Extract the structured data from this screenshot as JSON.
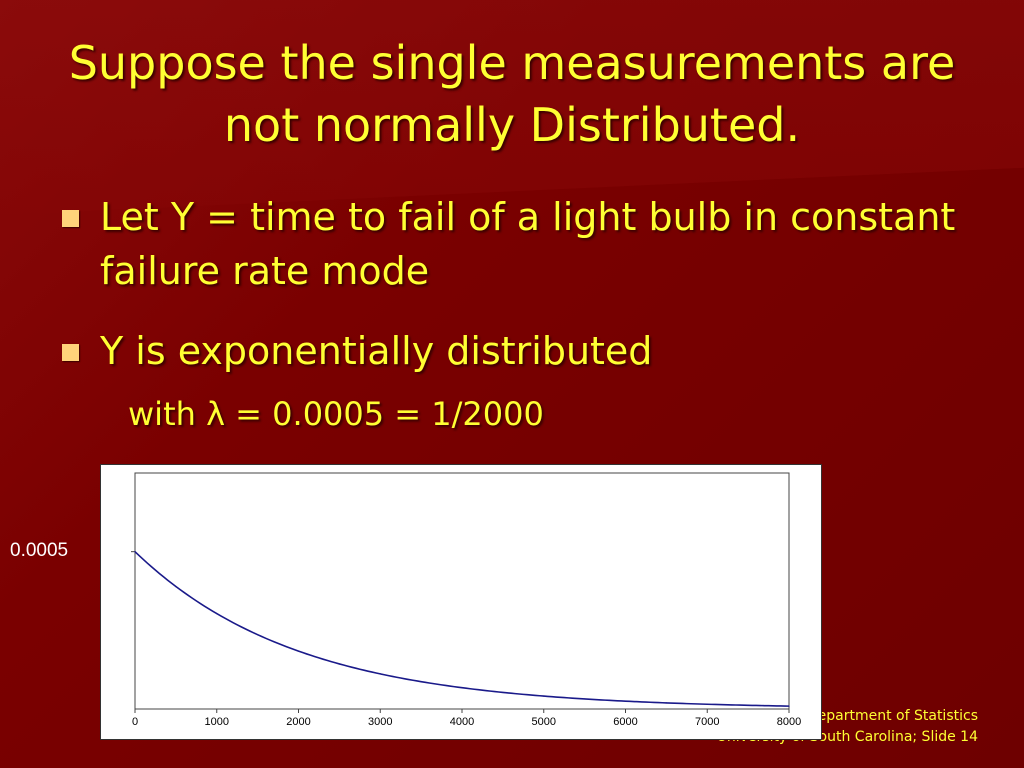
{
  "slide": {
    "title": "Suppose the single measurements are not normally Distributed.",
    "bullets": [
      {
        "text": "Let Y = time to fail of a light bulb in constant failure rate mode"
      },
      {
        "text": "Y is exponentially distributed"
      }
    ],
    "subtext": "with λ = 0.0005 = 1/2000",
    "footer": {
      "line1": "Department of Statistics",
      "line2": "University of South Carolina; Slide 14"
    },
    "colors": {
      "text": "#ffff33",
      "bullet": "#ffd37a",
      "background": "#7a0000",
      "curve": "#1a1a8a"
    }
  },
  "chart_data": {
    "type": "line",
    "x_ticks": [
      0,
      1000,
      2000,
      3000,
      4000,
      5000,
      6000,
      7000,
      8000
    ],
    "y_tick_label": "0.0005",
    "xlim": [
      0,
      8000
    ],
    "ylim": [
      0,
      0.00075
    ],
    "series": [
      {
        "x": [
          0,
          500,
          1000,
          1500,
          2000,
          2500,
          3000,
          3500,
          4000,
          4500,
          5000,
          5500,
          6000,
          6500,
          7000,
          7500,
          8000
        ],
        "y": [
          0.0005,
          0.000389,
          0.000303,
          0.000236,
          0.000184,
          0.000143,
          0.000112,
          8.69e-05,
          6.77e-05,
          5.27e-05,
          4.1e-05,
          3.2e-05,
          2.49e-05,
          1.94e-05,
          1.51e-05,
          1.18e-05,
          9.16e-06
        ]
      }
    ]
  }
}
